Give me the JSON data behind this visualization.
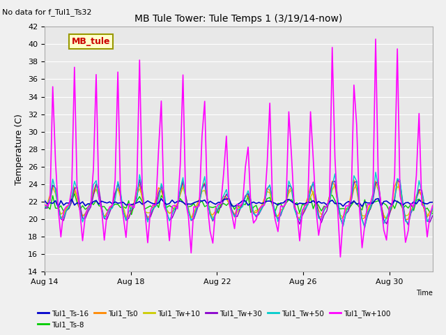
{
  "title": "MB Tule Tower: Tule Temps 1 (3/19/14-now)",
  "subtitle": "No data for f_Tul1_Ts32",
  "ylabel": "Temperature (C)",
  "xlabel": "Time",
  "legend_label": "MB_tule",
  "ylim": [
    14,
    42
  ],
  "yticks": [
    14,
    16,
    18,
    20,
    22,
    24,
    26,
    28,
    30,
    32,
    34,
    36,
    38,
    40,
    42
  ],
  "bg_color": "#e8e8e8",
  "series": {
    "Tul1_Ts-16": {
      "color": "#0000cc",
      "lw": 1.2
    },
    "Tul1_Ts-8": {
      "color": "#00cc00",
      "lw": 1.0
    },
    "Tul1_Ts0": {
      "color": "#ff8800",
      "lw": 1.0
    },
    "Tul1_Tw+10": {
      "color": "#cccc00",
      "lw": 1.0
    },
    "Tul1_Tw+30": {
      "color": "#8800cc",
      "lw": 1.0
    },
    "Tul1_Tw+50": {
      "color": "#00cccc",
      "lw": 1.0
    },
    "Tul1_Tw+100": {
      "color": "#ff00ff",
      "lw": 1.2
    }
  },
  "xticklabels": [
    "Aug 14",
    "Aug 18",
    "Aug 22",
    "Aug 26",
    "Aug 30"
  ],
  "xtick_positions": [
    0,
    4,
    8,
    12,
    16
  ]
}
